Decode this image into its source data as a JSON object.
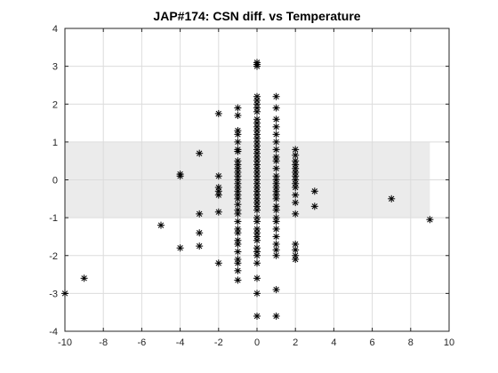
{
  "chart_data": {
    "type": "scatter",
    "title": "JAP#174: CSN diff. vs Temperature",
    "xlabel": "",
    "ylabel": "",
    "xlim": [
      -10,
      10
    ],
    "ylim": [
      -4,
      4
    ],
    "xticks": [
      -10,
      -8,
      -6,
      -4,
      -2,
      0,
      2,
      4,
      6,
      8,
      10
    ],
    "yticks": [
      -4,
      -3,
      -2,
      -1,
      0,
      1,
      2,
      3,
      4
    ],
    "grid": true,
    "legend": "none",
    "marker": "asterisk",
    "marker_color": "#000000",
    "band": {
      "x": [
        -10,
        9
      ],
      "y": [
        -1,
        1
      ],
      "color": "#ebebeb"
    },
    "series": [
      {
        "points": [
          [
            -10,
            -3.0
          ],
          [
            -9,
            -2.6
          ],
          [
            -5,
            -1.2
          ],
          [
            -4,
            0.15
          ],
          [
            -4,
            0.1
          ],
          [
            -4,
            -1.8
          ],
          [
            -3,
            0.7
          ],
          [
            -3,
            -0.9
          ],
          [
            -3,
            -1.4
          ],
          [
            -3,
            -1.75
          ],
          [
            -2,
            1.75
          ],
          [
            -2,
            0.1
          ],
          [
            -2,
            -0.2
          ],
          [
            -2,
            -0.3
          ],
          [
            -2,
            -0.4
          ],
          [
            -2,
            -0.85
          ],
          [
            -2,
            -2.2
          ],
          [
            -1,
            1.9
          ],
          [
            -1,
            1.7
          ],
          [
            -1,
            1.3
          ],
          [
            -1,
            1.2
          ],
          [
            -1,
            1.0
          ],
          [
            -1,
            0.8
          ],
          [
            -1,
            0.75
          ],
          [
            -1,
            0.5
          ],
          [
            -1,
            0.4
          ],
          [
            -1,
            0.3
          ],
          [
            -1,
            0.2
          ],
          [
            -1,
            0.1
          ],
          [
            -1,
            0.0
          ],
          [
            -1,
            -0.1
          ],
          [
            -1,
            -0.2
          ],
          [
            -1,
            -0.3
          ],
          [
            -1,
            -0.4
          ],
          [
            -1,
            -0.5
          ],
          [
            -1,
            -0.65
          ],
          [
            -1,
            -0.8
          ],
          [
            -1,
            -0.9
          ],
          [
            -1,
            -1.1
          ],
          [
            -1,
            -1.3
          ],
          [
            -1,
            -1.4
          ],
          [
            -1,
            -1.6
          ],
          [
            -1,
            -1.7
          ],
          [
            -1,
            -1.9
          ],
          [
            -1,
            -2.1
          ],
          [
            -1,
            -2.2
          ],
          [
            -1,
            -2.4
          ],
          [
            -1,
            -2.65
          ],
          [
            0,
            3.1
          ],
          [
            0,
            3.05
          ],
          [
            0,
            3.0
          ],
          [
            0,
            2.2
          ],
          [
            0,
            2.1
          ],
          [
            0,
            2.0
          ],
          [
            0,
            1.9
          ],
          [
            0,
            1.8
          ],
          [
            0,
            1.6
          ],
          [
            0,
            1.5
          ],
          [
            0,
            1.4
          ],
          [
            0,
            1.3
          ],
          [
            0,
            1.2
          ],
          [
            0,
            1.1
          ],
          [
            0,
            1.0
          ],
          [
            0,
            0.9
          ],
          [
            0,
            0.8
          ],
          [
            0,
            0.7
          ],
          [
            0,
            0.6
          ],
          [
            0,
            0.5
          ],
          [
            0,
            0.4
          ],
          [
            0,
            0.3
          ],
          [
            0,
            0.2
          ],
          [
            0,
            0.1
          ],
          [
            0,
            0.0
          ],
          [
            0,
            -0.1
          ],
          [
            0,
            -0.2
          ],
          [
            0,
            -0.3
          ],
          [
            0,
            -0.4
          ],
          [
            0,
            -0.5
          ],
          [
            0,
            -0.6
          ],
          [
            0,
            -0.7
          ],
          [
            0,
            -0.8
          ],
          [
            0,
            -1.0
          ],
          [
            0,
            -1.1
          ],
          [
            0,
            -1.3
          ],
          [
            0,
            -1.4
          ],
          [
            0,
            -1.5
          ],
          [
            0,
            -1.6
          ],
          [
            0,
            -1.8
          ],
          [
            0,
            -1.9
          ],
          [
            0,
            -2.0
          ],
          [
            0,
            -2.2
          ],
          [
            0,
            -2.6
          ],
          [
            0,
            -3.0
          ],
          [
            0,
            -3.6
          ],
          [
            1,
            2.2
          ],
          [
            1,
            1.9
          ],
          [
            1,
            1.6
          ],
          [
            1,
            1.4
          ],
          [
            1,
            1.2
          ],
          [
            1,
            1.0
          ],
          [
            1,
            0.8
          ],
          [
            1,
            0.6
          ],
          [
            1,
            0.5
          ],
          [
            1,
            0.3
          ],
          [
            1,
            0.1
          ],
          [
            1,
            0.0
          ],
          [
            1,
            -0.1
          ],
          [
            1,
            -0.2
          ],
          [
            1,
            -0.3
          ],
          [
            1,
            -0.4
          ],
          [
            1,
            -0.5
          ],
          [
            1,
            -0.7
          ],
          [
            1,
            -0.8
          ],
          [
            1,
            -1.0
          ],
          [
            1,
            -1.1
          ],
          [
            1,
            -1.3
          ],
          [
            1,
            -1.5
          ],
          [
            1,
            -1.7
          ],
          [
            1,
            -1.85
          ],
          [
            1,
            -2.0
          ],
          [
            1,
            -2.9
          ],
          [
            1,
            -3.6
          ],
          [
            2,
            0.8
          ],
          [
            2,
            0.65
          ],
          [
            2,
            0.5
          ],
          [
            2,
            0.4
          ],
          [
            2,
            0.3
          ],
          [
            2,
            0.2
          ],
          [
            2,
            0.1
          ],
          [
            2,
            0.0
          ],
          [
            2,
            -0.1
          ],
          [
            2,
            -0.2
          ],
          [
            2,
            -0.4
          ],
          [
            2,
            -0.6
          ],
          [
            2,
            -0.9
          ],
          [
            2,
            -1.7
          ],
          [
            2,
            -1.85
          ],
          [
            2,
            -2.0
          ],
          [
            2,
            -2.1
          ],
          [
            3,
            -0.3
          ],
          [
            3,
            -0.7
          ],
          [
            7,
            -0.5
          ],
          [
            9,
            -1.05
          ]
        ]
      }
    ]
  }
}
